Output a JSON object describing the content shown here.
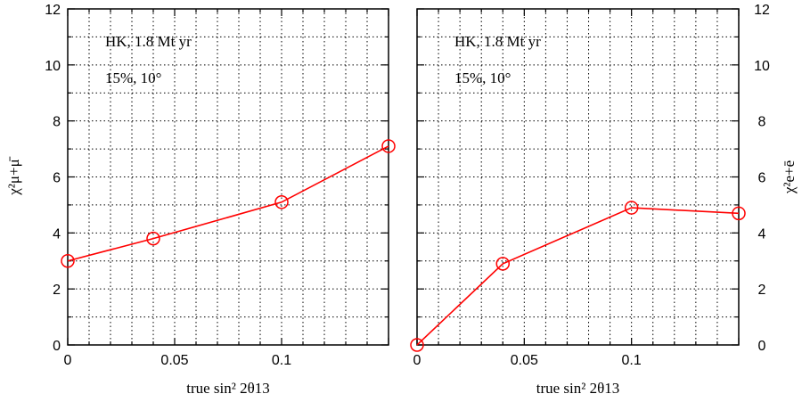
{
  "colors": {
    "series": "#ff0000",
    "axis": "#000000"
  },
  "chart_data": [
    {
      "type": "line",
      "panel": "left",
      "annotations": [
        "HK, 1.8 Mt yr",
        "15%, 10°"
      ],
      "xlabel": "true sin² 2θ13",
      "ylabel": "χ²μ+μ̄",
      "xlim": [
        0,
        0.15
      ],
      "ylim": [
        0,
        12
      ],
      "xticks": [
        0,
        0.05,
        0.1
      ],
      "xtick_labels": [
        "0",
        "0.05",
        "0.1"
      ],
      "yticks": [
        0,
        2,
        4,
        6,
        8,
        10,
        12
      ],
      "ytick_labels": [
        "0",
        "2",
        "4",
        "6",
        "8",
        "10",
        "12"
      ],
      "y_axis_side": "left",
      "grid": true,
      "x": [
        0,
        0.04,
        0.1,
        0.15
      ],
      "series": [
        {
          "values": [
            3.0,
            3.8,
            5.1,
            7.1
          ],
          "marker": "open-circle"
        }
      ]
    },
    {
      "type": "line",
      "panel": "right",
      "annotations": [
        "HK, 1.8 Mt yr",
        "15%, 10°"
      ],
      "xlabel": "true sin² 2θ13",
      "ylabel": "χ²e+ē",
      "xlim": [
        0,
        0.15
      ],
      "ylim": [
        0,
        12
      ],
      "xticks": [
        0,
        0.05,
        0.1
      ],
      "xtick_labels": [
        "0",
        "0.05",
        "0.1"
      ],
      "yticks": [
        0,
        2,
        4,
        6,
        8,
        10,
        12
      ],
      "ytick_labels": [
        "0",
        "2",
        "4",
        "6",
        "8",
        "10",
        "12"
      ],
      "y_axis_side": "right",
      "grid": true,
      "x": [
        0,
        0.04,
        0.1,
        0.15
      ],
      "series": [
        {
          "values": [
            0.0,
            2.9,
            4.9,
            4.7
          ],
          "marker": "open-circle"
        }
      ]
    }
  ]
}
